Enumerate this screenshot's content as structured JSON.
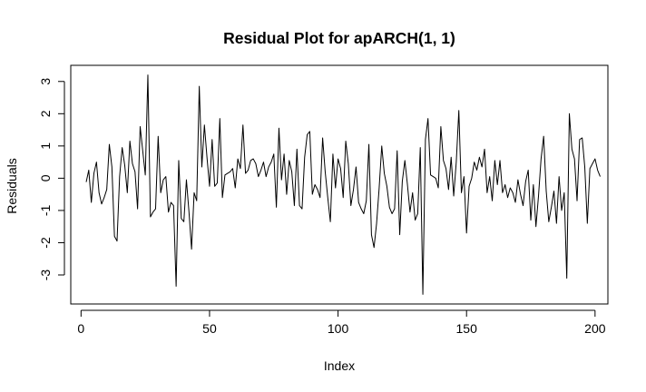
{
  "chart_data": {
    "type": "line",
    "title": "Residual Plot for apARCH(1, 1)",
    "xlabel": "Index",
    "ylabel": "Residuals",
    "xlim": [
      -4,
      205
    ],
    "ylim": [
      -3.9,
      3.5
    ],
    "x_ticks": [
      0,
      50,
      100,
      150,
      200
    ],
    "y_ticks": [
      -3,
      -2,
      -1,
      0,
      1,
      2,
      3
    ],
    "x_tick_labels": [
      "0",
      "50",
      "100",
      "150",
      "200"
    ],
    "y_tick_labels": [
      "-3",
      "-2",
      "-1",
      "0",
      "1",
      "2",
      "3"
    ],
    "grid": false,
    "line_color": "#000000",
    "series": [
      {
        "x_start": 2,
        "values": [
          -0.12,
          0.25,
          -0.75,
          0.15,
          0.5,
          -0.45,
          -0.8,
          -0.6,
          -0.35,
          1.05,
          0.35,
          -1.8,
          -1.95,
          0.05,
          0.95,
          0.4,
          -0.45,
          1.15,
          0.45,
          0.2,
          -0.95,
          1.6,
          0.85,
          0.1,
          3.2,
          -1.2,
          -1.05,
          -0.95,
          1.3,
          -0.45,
          -0.05,
          0.05,
          -1.05,
          -0.75,
          -0.85,
          -3.35,
          0.55,
          -1.25,
          -1.35,
          -0.05,
          -1.05,
          -2.2,
          -0.45,
          -0.7,
          2.85,
          0.35,
          1.65,
          0.65,
          -0.25,
          1.2,
          -0.25,
          -0.15,
          1.85,
          -0.6,
          0.1,
          0.15,
          0.2,
          0.3,
          -0.3,
          0.6,
          0.3,
          1.65,
          0.15,
          0.25,
          0.55,
          0.6,
          0.45,
          0.05,
          0.25,
          0.5,
          0.05,
          0.35,
          0.5,
          0.75,
          -0.9,
          1.55,
          -0.05,
          0.75,
          -0.5,
          0.55,
          0.2,
          -0.85,
          0.9,
          -0.85,
          -0.95,
          0.65,
          1.35,
          1.45,
          -0.5,
          -0.2,
          -0.35,
          -0.6,
          1.25,
          0.2,
          -0.6,
          -1.35,
          0.75,
          -0.3,
          0.6,
          0.3,
          -0.6,
          1.15,
          0.45,
          -0.85,
          -0.35,
          0.35,
          -0.75,
          -0.95,
          -1.1,
          -0.7,
          1.05,
          -1.75,
          -2.15,
          -1.4,
          -0.3,
          1.0,
          0.15,
          -0.25,
          -0.9,
          -1.1,
          -0.95,
          0.85,
          -1.75,
          -0.1,
          0.55,
          -0.2,
          -1.05,
          -0.45,
          -1.3,
          -1.1,
          0.95,
          -3.6,
          1.2,
          1.85,
          0.1,
          0.05,
          0.0,
          -0.3,
          1.6,
          0.55,
          0.3,
          -0.35,
          0.65,
          -0.55,
          0.5,
          2.1,
          -0.45,
          0.05,
          -1.7,
          -0.25,
          0.0,
          0.5,
          0.25,
          0.65,
          0.35,
          0.9,
          -0.45,
          0.05,
          -0.7,
          0.55,
          -0.2,
          0.55,
          -0.45,
          -0.2,
          -0.6,
          -0.3,
          -0.45,
          -0.75,
          -0.05,
          -0.5,
          -0.85,
          -0.1,
          0.25,
          -1.3,
          -0.2,
          -1.5,
          -0.55,
          0.6,
          1.3,
          -0.4,
          -1.35,
          -0.9,
          -0.4,
          -1.4,
          0.05,
          -1.0,
          -0.45,
          -3.1,
          2.0,
          0.9,
          0.6,
          -0.7,
          1.2,
          1.25,
          0.35,
          -1.4,
          0.3,
          0.45,
          0.6,
          0.25,
          0.05
        ]
      }
    ]
  }
}
